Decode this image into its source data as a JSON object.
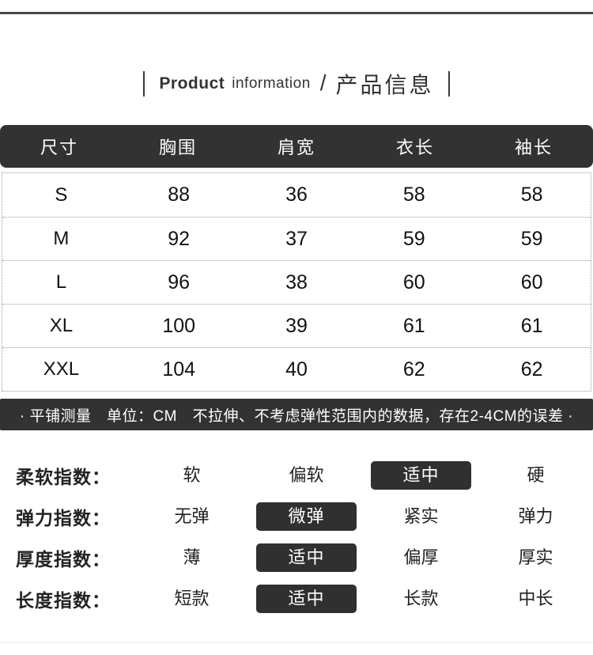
{
  "header": {
    "title_en_bold": "Product",
    "title_en_regular": "information",
    "divider": "/",
    "title_zh": "产品信息"
  },
  "size_table": {
    "columns": [
      "尺寸",
      "胸围",
      "肩宽",
      "衣长",
      "袖长"
    ],
    "rows": [
      {
        "size": "S",
        "values": [
          "88",
          "36",
          "58",
          "58"
        ]
      },
      {
        "size": "M",
        "values": [
          "92",
          "37",
          "59",
          "59"
        ]
      },
      {
        "size": "L",
        "values": [
          "96",
          "38",
          "60",
          "60"
        ]
      },
      {
        "size": "XL",
        "values": [
          "100",
          "39",
          "61",
          "61"
        ]
      },
      {
        "size": "XXL",
        "values": [
          "104",
          "40",
          "62",
          "62"
        ]
      }
    ]
  },
  "note": "· 平铺测量　单位：CM　不拉伸、不考虑弹性范围内的数据，存在2-4CM的误差 ·",
  "indexes": [
    {
      "label": "柔软指数：",
      "options": [
        "软",
        "偏软",
        "适中",
        "硬"
      ],
      "selected": 2
    },
    {
      "label": "弹力指数：",
      "options": [
        "无弹",
        "微弹",
        "紧实",
        "弹力"
      ],
      "selected": 1
    },
    {
      "label": "厚度指数：",
      "options": [
        "薄",
        "适中",
        "偏厚",
        "厚实"
      ],
      "selected": 1
    },
    {
      "label": "长度指数：",
      "options": [
        "短款",
        "适中",
        "长款",
        "中长"
      ],
      "selected": 1
    }
  ],
  "colors": {
    "dark_bar": "#323232",
    "selected_bg": "#303030",
    "dotted_border": "#999999",
    "text": "#111111"
  }
}
